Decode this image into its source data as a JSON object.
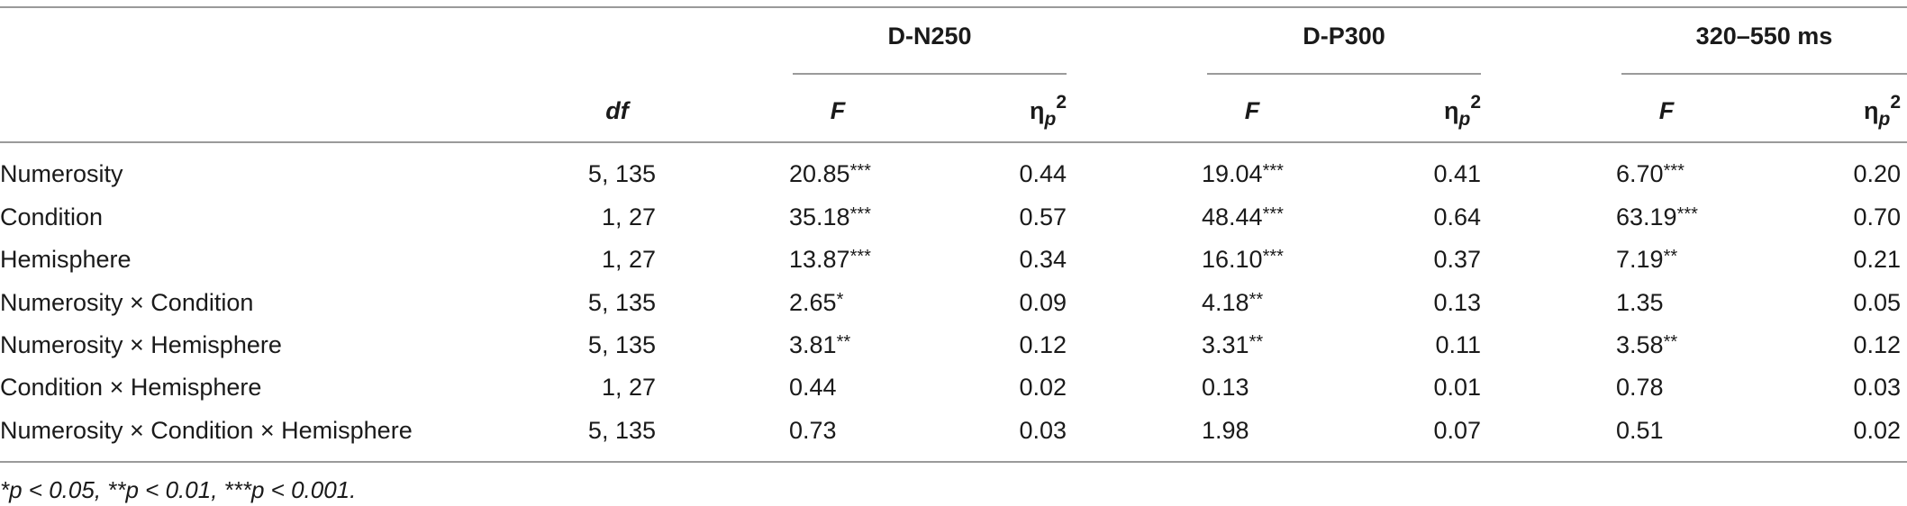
{
  "groups": [
    {
      "label": "D-N250"
    },
    {
      "label": "D-P300"
    },
    {
      "label": "320–550 ms"
    }
  ],
  "columns": {
    "df": "df",
    "F": "F",
    "eta_symbol": "η",
    "eta_sub": "p",
    "eta_sup": "2"
  },
  "rows": [
    {
      "label": "Numerosity",
      "df": "5, 135",
      "n250_f": "20.85",
      "n250_f_sig": "***",
      "n250_eta": "0.44",
      "p300_f": "19.04",
      "p300_f_sig": "***",
      "p300_eta": "0.41",
      "late_f": "6.70",
      "late_f_sig": "***",
      "late_eta": "0.20"
    },
    {
      "label": "Condition",
      "df": "1, 27",
      "n250_f": "35.18",
      "n250_f_sig": "***",
      "n250_eta": "0.57",
      "p300_f": "48.44",
      "p300_f_sig": "***",
      "p300_eta": "0.64",
      "late_f": "63.19",
      "late_f_sig": "***",
      "late_eta": "0.70"
    },
    {
      "label": "Hemisphere",
      "df": "1, 27",
      "n250_f": "13.87",
      "n250_f_sig": "***",
      "n250_eta": "0.34",
      "p300_f": "16.10",
      "p300_f_sig": "***",
      "p300_eta": "0.37",
      "late_f": "7.19",
      "late_f_sig": "**",
      "late_eta": "0.21"
    },
    {
      "label": "Numerosity × Condition",
      "df": "5, 135",
      "n250_f": "2.65",
      "n250_f_sig": "*",
      "n250_eta": "0.09",
      "p300_f": "4.18",
      "p300_f_sig": "**",
      "p300_eta": "0.13",
      "late_f": "1.35",
      "late_f_sig": "",
      "late_eta": "0.05"
    },
    {
      "label": "Numerosity × Hemisphere",
      "df": "5, 135",
      "n250_f": "3.81",
      "n250_f_sig": "**",
      "n250_eta": "0.12",
      "p300_f": "3.31",
      "p300_f_sig": "**",
      "p300_eta": "0.11",
      "late_f": "3.58",
      "late_f_sig": "**",
      "late_eta": "0.12"
    },
    {
      "label": "Condition × Hemisphere",
      "df": "1, 27",
      "n250_f": "0.44",
      "n250_f_sig": "",
      "n250_eta": "0.02",
      "p300_f": "0.13",
      "p300_f_sig": "",
      "p300_eta": "0.01",
      "late_f": "0.78",
      "late_f_sig": "",
      "late_eta": "0.03"
    },
    {
      "label": "Numerosity × Condition × Hemisphere",
      "df": "5, 135",
      "n250_f": "0.73",
      "n250_f_sig": "",
      "n250_eta": "0.03",
      "p300_f": "1.98",
      "p300_f_sig": "",
      "p300_eta": "0.07",
      "late_f": "0.51",
      "late_f_sig": "",
      "late_eta": "0.02"
    }
  ],
  "footnote": "*p < 0.05, **p < 0.01, ***p < 0.001."
}
